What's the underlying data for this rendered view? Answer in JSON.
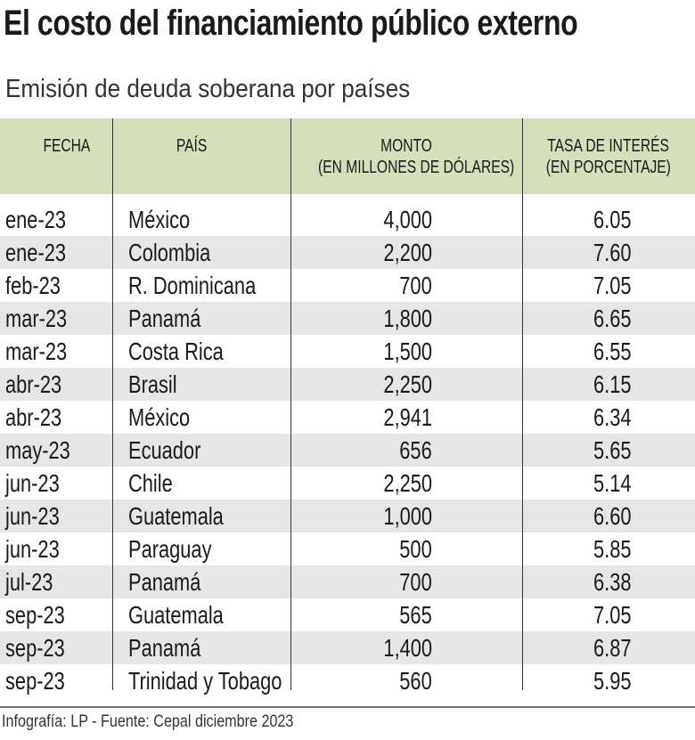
{
  "title": "El costo del financiamiento público externo",
  "subtitle": "Emisión de deuda soberana por países",
  "footer": "Infografía: LP - Fuente: Cepal diciembre 2023",
  "colors": {
    "header_bg": "#d3e0bc",
    "alt_row_bg": "#e6e6e6"
  },
  "chart_data": {
    "type": "table",
    "columns": [
      {
        "line1": "FECHA",
        "line2": ""
      },
      {
        "line1": "PAÍS",
        "line2": ""
      },
      {
        "line1": "MONTO",
        "line2": "(EN MILLONES DE DÓLARES)"
      },
      {
        "line1": "TASA DE INTERÉS",
        "line2": "(EN PORCENTAJE)"
      }
    ],
    "rows": [
      [
        "ene-23",
        "México",
        "4,000",
        "6.05"
      ],
      [
        "ene-23",
        "Colombia",
        "2,200",
        "7.60"
      ],
      [
        "feb-23",
        "R. Dominicana",
        "700",
        "7.05"
      ],
      [
        "mar-23",
        "Panamá",
        "1,800",
        "6.65"
      ],
      [
        "mar-23",
        "Costa Rica",
        "1,500",
        "6.55"
      ],
      [
        "abr-23",
        "Brasil",
        "2,250",
        "6.15"
      ],
      [
        "abr-23",
        "México",
        "2,941",
        "6.34"
      ],
      [
        "may-23",
        "Ecuador",
        "656",
        "5.65"
      ],
      [
        "jun-23",
        "Chile",
        "2,250",
        "5.14"
      ],
      [
        "jun-23",
        "Guatemala",
        "1,000",
        "6.60"
      ],
      [
        "jun-23",
        "Paraguay",
        "500",
        "5.85"
      ],
      [
        "jul-23",
        "Panamá",
        "700",
        "6.38"
      ],
      [
        "sep-23",
        "Guatemala",
        "565",
        "7.05"
      ],
      [
        "sep-23",
        "Panamá",
        "1,400",
        "6.87"
      ],
      [
        "sep-23",
        "Trinidad y Tobago",
        "560",
        "5.95"
      ]
    ]
  }
}
